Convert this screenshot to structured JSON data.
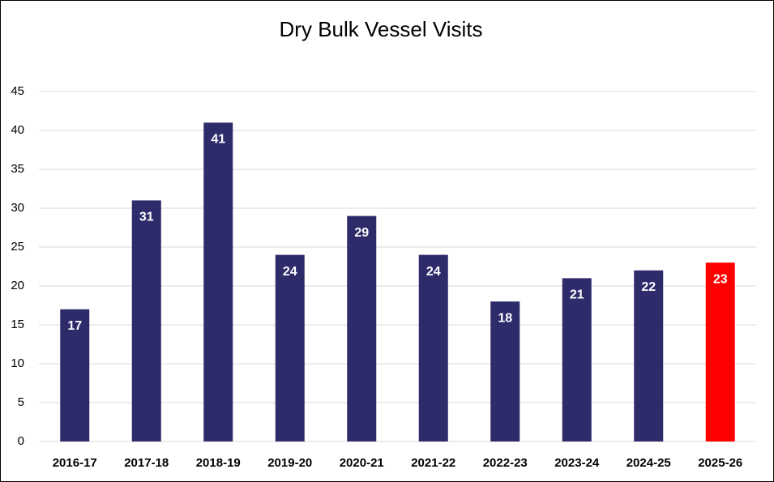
{
  "chart_data": {
    "type": "bar",
    "title": "Dry Bulk Vessel Visits",
    "categories": [
      "2016-17",
      "2017-18",
      "2018-19",
      "2019-20",
      "2020-21",
      "2021-22",
      "2022-23",
      "2023-24",
      "2024-25",
      "2025-26"
    ],
    "values": [
      17,
      31,
      41,
      24,
      29,
      24,
      18,
      21,
      22,
      23
    ],
    "colors": [
      "#2e2b6b",
      "#2e2b6b",
      "#2e2b6b",
      "#2e2b6b",
      "#2e2b6b",
      "#2e2b6b",
      "#2e2b6b",
      "#2e2b6b",
      "#2e2b6b",
      "#ff0000"
    ],
    "ylim": [
      0,
      45
    ],
    "yticks": [
      0,
      5,
      10,
      15,
      20,
      25,
      30,
      35,
      40,
      45
    ],
    "grid": true,
    "data_labels": true
  }
}
